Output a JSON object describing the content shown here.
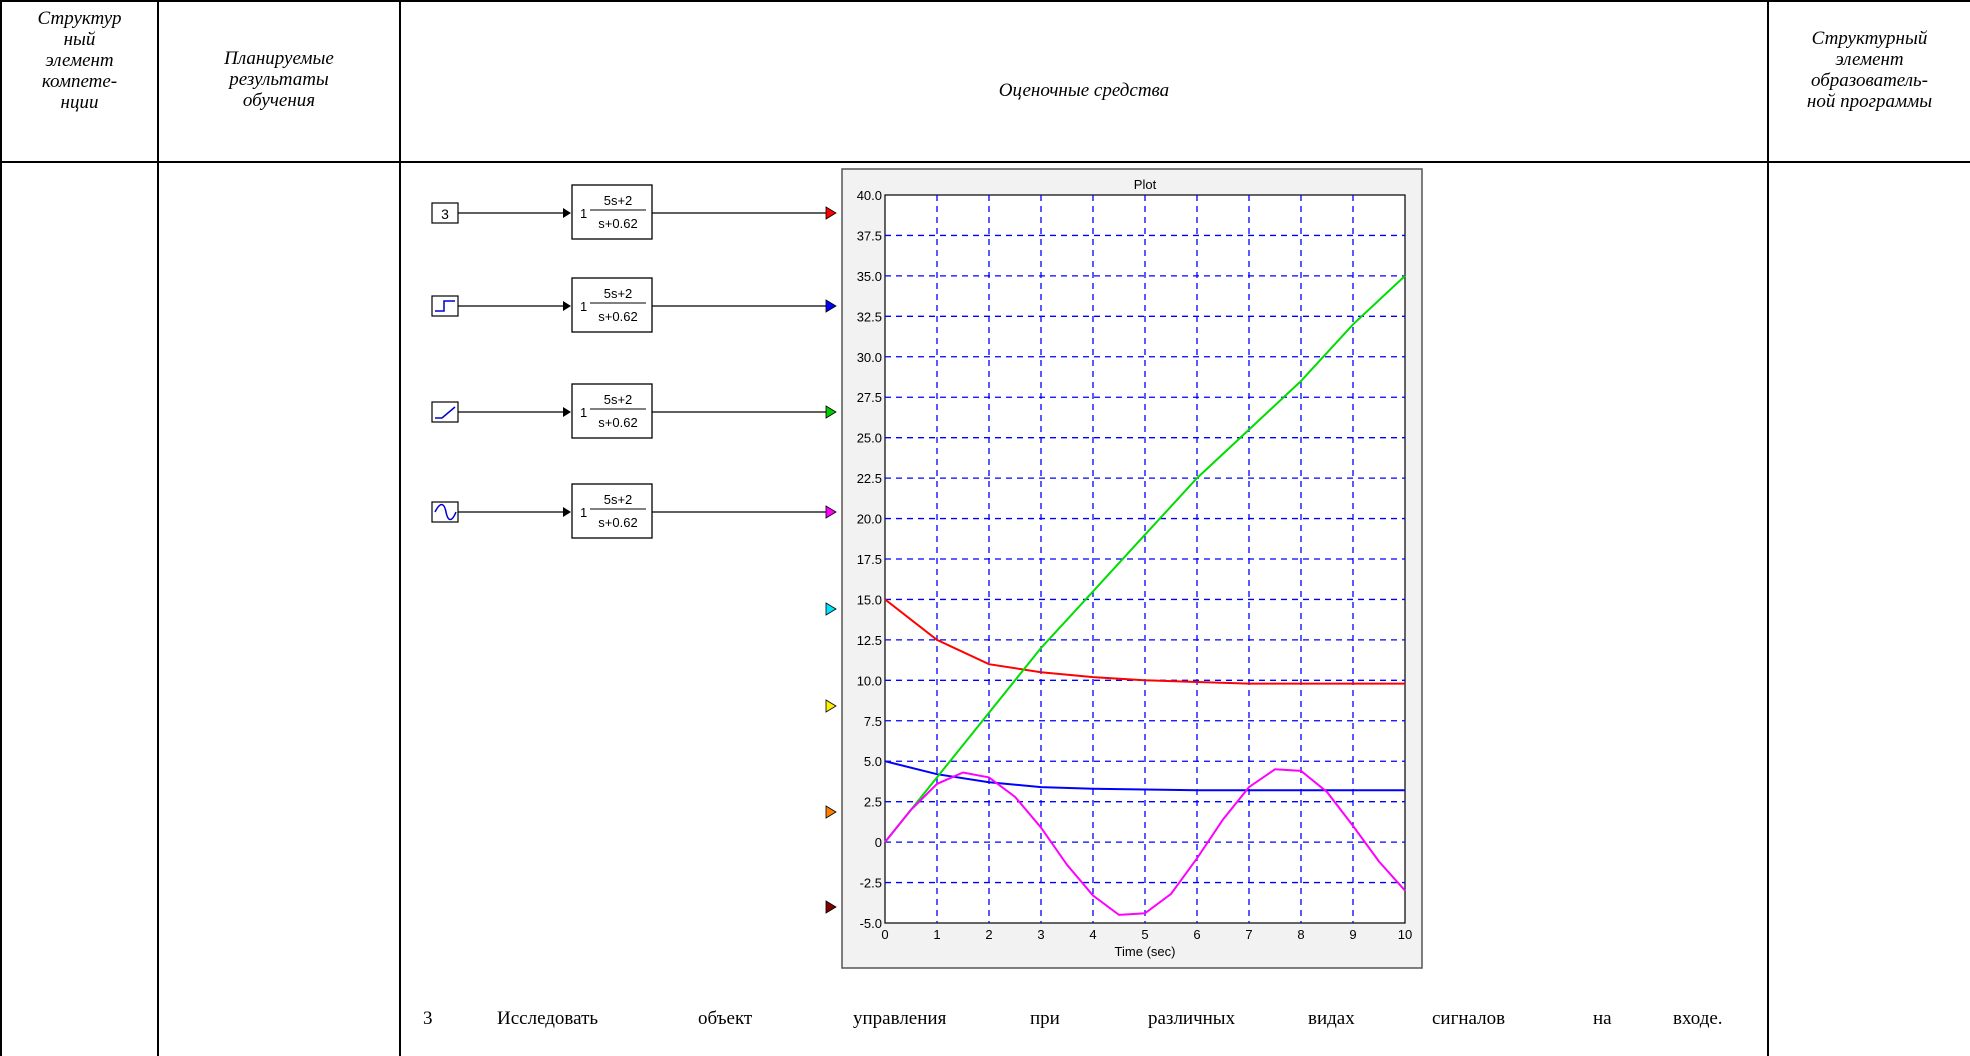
{
  "header": {
    "col1": [
      "Структур",
      "ный",
      "элемент",
      "компете-",
      "нции"
    ],
    "col2": [
      "Планируемые",
      "результаты",
      "обучения"
    ],
    "col3": "Оценочные средства",
    "col4": [
      "Структурный",
      "элемент",
      "образователь-",
      "ной программы"
    ]
  },
  "diagram": {
    "sources": [
      {
        "kind": "constant",
        "label": "3",
        "icon": "constant-icon"
      },
      {
        "kind": "step",
        "icon": "step-icon"
      },
      {
        "kind": "ramp",
        "icon": "ramp-icon"
      },
      {
        "kind": "sine",
        "icon": "sine-icon"
      }
    ],
    "transfer_function": {
      "gain": "1",
      "numerator": "5s+2",
      "denominator": "s+0.62"
    },
    "port_colors": [
      "#ff0000",
      "#0000ff",
      "#00cc00",
      "#ff00ff",
      "#00e5ff",
      "#ffee00",
      "#ff8000",
      "#800000"
    ]
  },
  "chart_data": {
    "type": "line",
    "title": "Plot",
    "xlabel": "Time (sec)",
    "ylabel": "",
    "xlim": [
      0,
      10
    ],
    "ylim": [
      -5,
      40
    ],
    "xticks": [
      "0",
      "1",
      "2",
      "3",
      "4",
      "5",
      "6",
      "7",
      "8",
      "9",
      "10"
    ],
    "yticks": [
      "-5.0",
      "-2.5",
      "0",
      "2.5",
      "5.0",
      "7.5",
      "10.0",
      "12.5",
      "15.0",
      "17.5",
      "20.0",
      "22.5",
      "25.0",
      "27.5",
      "30.0",
      "32.5",
      "35.0",
      "37.5",
      "40.0"
    ],
    "grid": true,
    "series": [
      {
        "color": "#ff0000",
        "x": [
          0,
          1,
          2,
          3,
          4,
          5,
          6,
          7,
          8,
          9,
          10
        ],
        "y": [
          15.0,
          12.5,
          11.0,
          10.5,
          10.2,
          10.0,
          9.9,
          9.8,
          9.8,
          9.8,
          9.8
        ]
      },
      {
        "color": "#0000ff",
        "x": [
          0,
          1,
          2,
          3,
          4,
          5,
          6,
          7,
          8,
          9,
          10
        ],
        "y": [
          5.0,
          4.2,
          3.7,
          3.4,
          3.3,
          3.25,
          3.2,
          3.2,
          3.2,
          3.2,
          3.2
        ]
      },
      {
        "color": "#00dd00",
        "x": [
          0,
          1,
          2,
          3,
          4,
          5,
          6,
          7,
          8,
          9,
          10
        ],
        "y": [
          0,
          4.0,
          8.0,
          12.0,
          15.5,
          19.0,
          22.5,
          25.5,
          28.5,
          32.0,
          35.0
        ]
      },
      {
        "color": "#ff00ff",
        "x": [
          0,
          0.5,
          1,
          1.5,
          2,
          2.5,
          3,
          3.5,
          4,
          4.5,
          5,
          5.5,
          6,
          6.5,
          7,
          7.5,
          8,
          8.5,
          9,
          9.5,
          10
        ],
        "y": [
          0,
          2.0,
          3.6,
          4.3,
          4.0,
          2.8,
          0.9,
          -1.4,
          -3.3,
          -4.5,
          -4.4,
          -3.2,
          -1.0,
          1.4,
          3.4,
          4.5,
          4.4,
          3.1,
          1.0,
          -1.2,
          -3.0
        ]
      }
    ]
  },
  "task": {
    "number": "3",
    "words": [
      "Исследовать",
      "объект",
      "управления",
      "при",
      "различных",
      "видах",
      "сигналов",
      "на",
      "входе."
    ]
  }
}
